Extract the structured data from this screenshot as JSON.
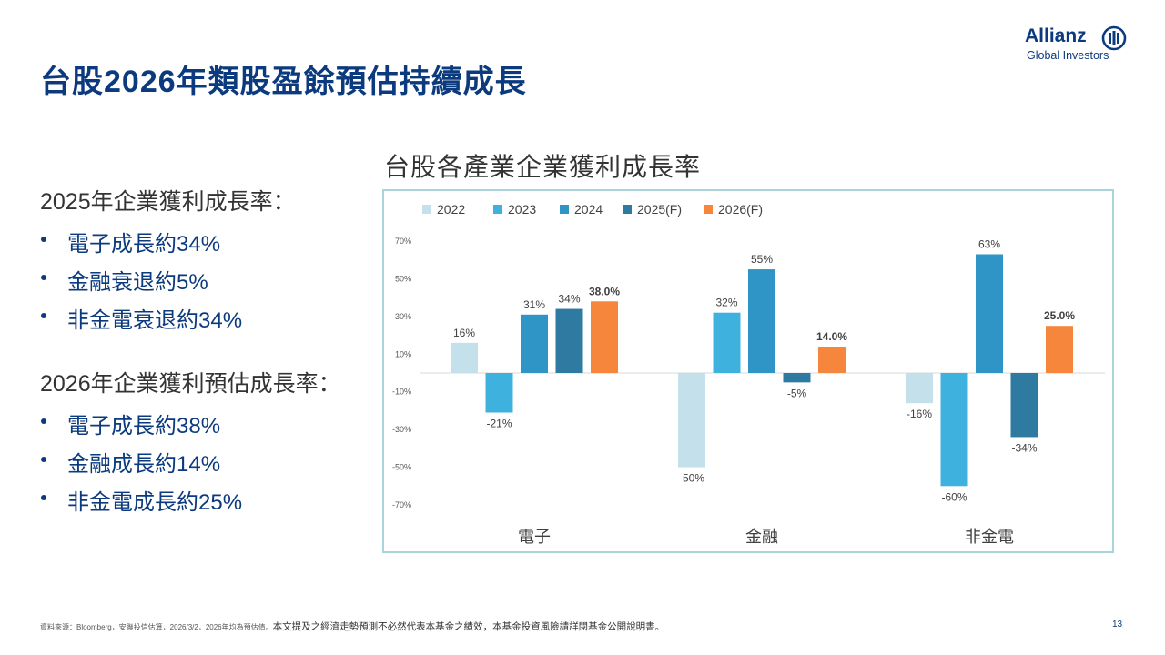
{
  "slide": {
    "title": "台股2026年類股盈餘預估持續成長",
    "page_number": "13"
  },
  "logo": {
    "brand": "Allianz",
    "sub": "Global Investors",
    "icon": "allianz-eagle-icon"
  },
  "left_panel": {
    "group1": {
      "heading": "2025年企業獲利成長率：",
      "items": [
        "電子成長約34%",
        "金融衰退約5%",
        "非金電衰退約34%"
      ]
    },
    "group2": {
      "heading": "2026年企業獲利預估成長率：",
      "items": [
        "電子成長約38%",
        "金融成長約14%",
        "非金電成長約25%"
      ]
    }
  },
  "footer": {
    "source": "資料來源：Bloomberg，安聯投信估算，2026/3/2，2026年均為預估值。",
    "disclaimer": "本文提及之經濟走勢預測不必然代表本基金之績效，本基金投資風險請詳閱基金公開說明書。"
  },
  "chart_data": {
    "type": "bar",
    "title": "台股各產業企業獲利成長率",
    "categories": [
      "電子",
      "金融",
      "非金電"
    ],
    "series": [
      {
        "name": "2022",
        "color": "#c4e0ea",
        "values": [
          16,
          -50,
          -16
        ],
        "labels": [
          "16%",
          "-50%",
          "-16%"
        ],
        "bold": false
      },
      {
        "name": "2023",
        "color": "#3fb1df",
        "values": [
          -21,
          32,
          -60
        ],
        "labels": [
          "-21%",
          "32%",
          "-60%"
        ],
        "bold": false
      },
      {
        "name": "2024",
        "color": "#2f94c6",
        "values": [
          31,
          55,
          63
        ],
        "labels": [
          "31%",
          "55%",
          "63%"
        ],
        "bold": false
      },
      {
        "name": "2025(F)",
        "color": "#2e7aa1",
        "values": [
          34,
          -5,
          -34
        ],
        "labels": [
          "34%",
          "-5%",
          "-34%"
        ],
        "bold": false
      },
      {
        "name": "2026(F)",
        "color": "#f5863b",
        "values": [
          38,
          14,
          25
        ],
        "labels": [
          "38.0%",
          "14.0%",
          "25.0%"
        ],
        "bold": true
      }
    ],
    "y_ticks": [
      70,
      50,
      30,
      10,
      -10,
      -30,
      -50,
      -70
    ],
    "y_tick_labels": [
      "70%",
      "50%",
      "30%",
      "10%",
      "-10%",
      "-30%",
      "-50%",
      "-70%"
    ],
    "ylim": [
      -70,
      70
    ],
    "legend_position": "top-left",
    "grid": false
  }
}
